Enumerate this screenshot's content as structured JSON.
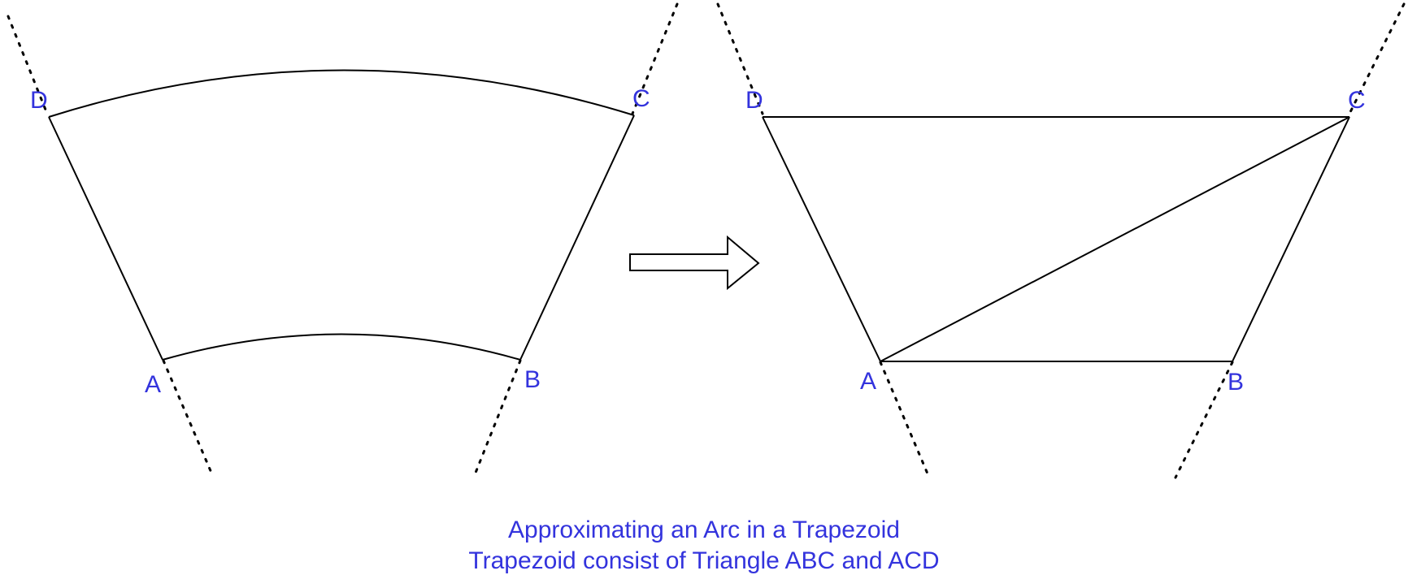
{
  "colors": {
    "label": "#3333dd",
    "stroke": "#000000",
    "background": "#ffffff"
  },
  "left_figure": {
    "label_d": "D",
    "label_c": "C",
    "label_a": "A",
    "label_b": "B"
  },
  "right_figure": {
    "label_d": "D",
    "label_c": "C",
    "label_a": "A",
    "label_b": "B"
  },
  "caption": {
    "line1": "Approximating an Arc in a Trapezoid",
    "line2": "Trapezoid consist of Triangle ABC and ACD"
  }
}
